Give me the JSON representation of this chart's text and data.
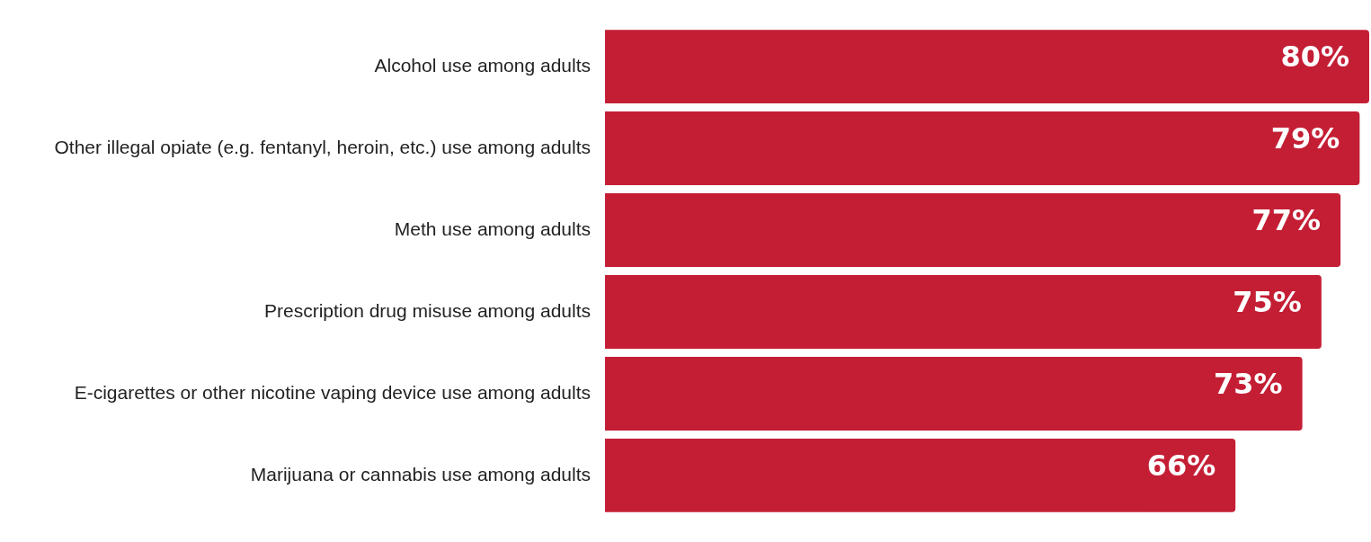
{
  "chart_data": {
    "type": "bar",
    "orientation": "horizontal",
    "categories": [
      "Alcohol use among adults",
      "Other illegal opiate (e.g. fentanyl, heroin, etc.) use among adults",
      "Meth use among adults",
      "Prescription drug misuse among adults",
      "E-cigarettes or other nicotine vaping device use among adults",
      "Marijuana or cannabis use among adults"
    ],
    "values": [
      80,
      79,
      77,
      75,
      73,
      66
    ],
    "value_labels": [
      "80%",
      "79%",
      "77%",
      "75%",
      "73%",
      "66%"
    ],
    "color": "#c41e35",
    "grid": false,
    "legend": false,
    "tick_labels": "y"
  }
}
